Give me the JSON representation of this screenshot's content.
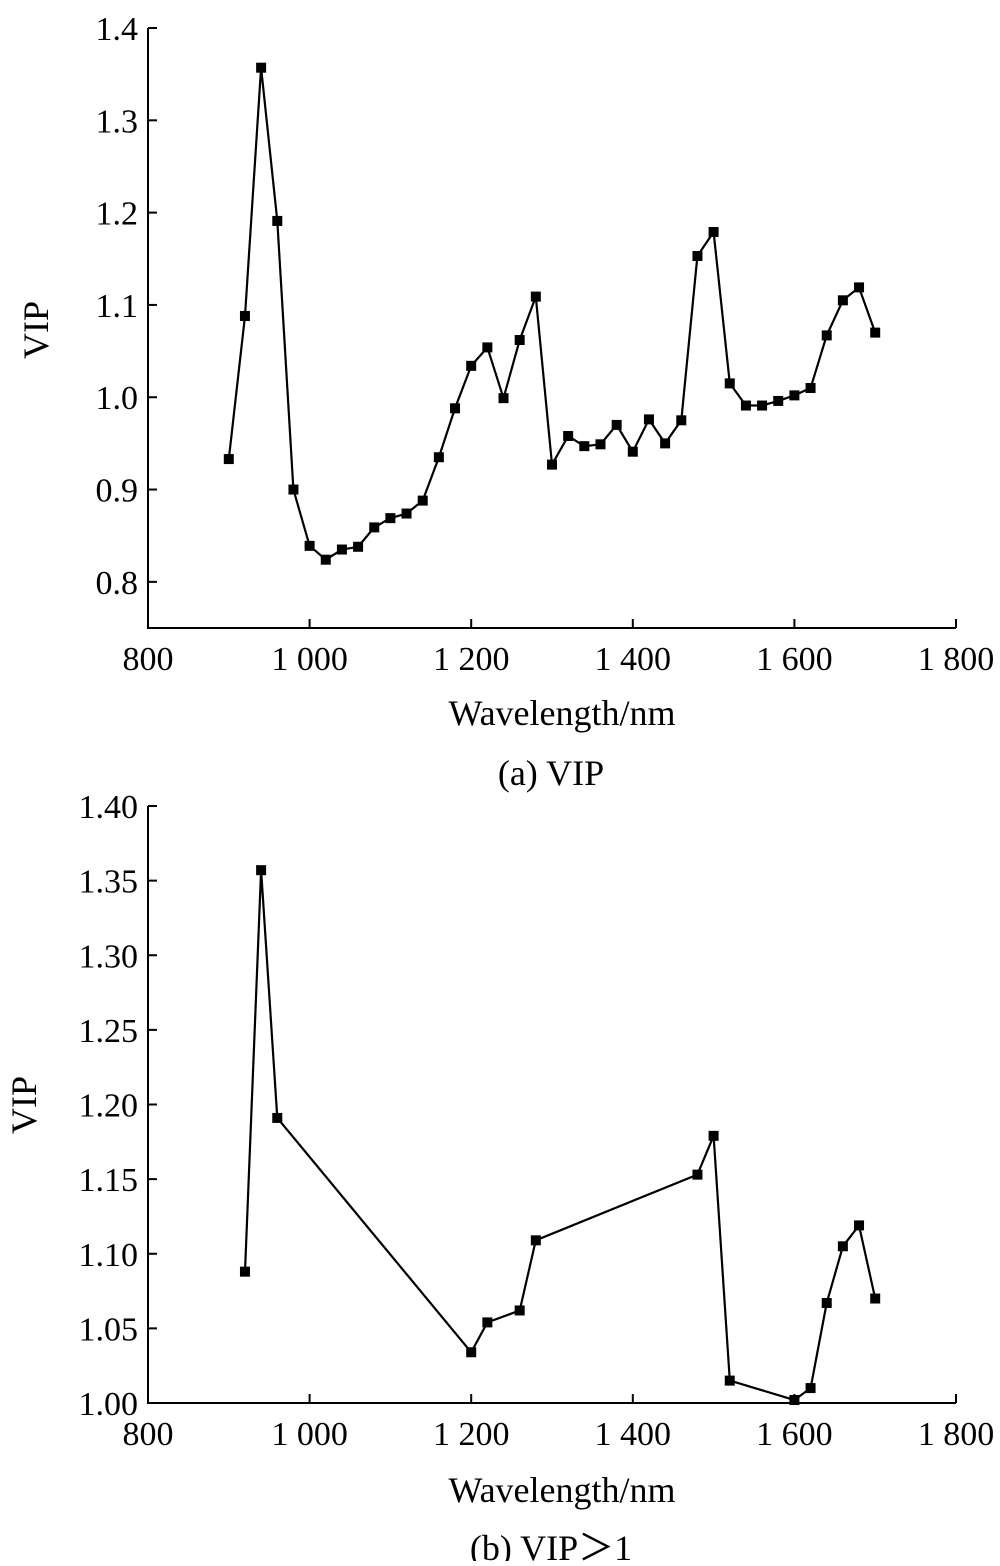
{
  "chart_data": [
    {
      "type": "line",
      "caption": "(a) VIP",
      "xlabel": "Wavelength/nm",
      "ylabel": "VIP",
      "xlim": [
        800,
        1800
      ],
      "ylim": [
        0.75,
        1.4
      ],
      "xticks": [
        800,
        1000,
        1200,
        1400,
        1600,
        1800
      ],
      "xtick_labels": [
        "800",
        "1 000",
        "1 200",
        "1 400",
        "1 600",
        "1 800"
      ],
      "yticks": [
        0.8,
        0.9,
        1.0,
        1.1,
        1.2,
        1.3,
        1.4
      ],
      "ytick_labels": [
        "0.8",
        "0.9",
        "1.0",
        "1.1",
        "1.2",
        "1.3",
        "1.4"
      ],
      "grid": false,
      "marker": "square",
      "x": [
        900,
        920,
        940,
        960,
        980,
        1000,
        1020,
        1040,
        1060,
        1080,
        1100,
        1120,
        1140,
        1160,
        1180,
        1200,
        1220,
        1240,
        1260,
        1280,
        1300,
        1320,
        1340,
        1360,
        1380,
        1400,
        1420,
        1440,
        1460,
        1480,
        1500,
        1520,
        1540,
        1560,
        1580,
        1600,
        1620,
        1640,
        1660,
        1680,
        1700
      ],
      "series": [
        {
          "values": [
            0.933,
            1.088,
            1.357,
            1.191,
            0.9,
            0.839,
            0.824,
            0.835,
            0.838,
            0.859,
            0.869,
            0.874,
            0.888,
            0.935,
            0.988,
            1.034,
            1.054,
            0.999,
            1.062,
            1.109,
            0.927,
            0.958,
            0.947,
            0.949,
            0.97,
            0.941,
            0.976,
            0.95,
            0.975,
            1.153,
            1.179,
            1.015,
            0.991,
            0.991,
            0.996,
            1.002,
            1.01,
            1.067,
            1.105,
            1.119,
            1.07
          ]
        }
      ]
    },
    {
      "type": "line",
      "caption": "(b) VIP＞1",
      "xlabel": "Wavelength/nm",
      "ylabel": "VIP",
      "xlim": [
        800,
        1800
      ],
      "ylim": [
        1.0,
        1.4
      ],
      "xticks": [
        800,
        1000,
        1200,
        1400,
        1600,
        1800
      ],
      "xtick_labels": [
        "800",
        "1 000",
        "1 200",
        "1 400",
        "1 600",
        "1 800"
      ],
      "yticks": [
        1.0,
        1.05,
        1.1,
        1.15,
        1.2,
        1.25,
        1.3,
        1.35,
        1.4
      ],
      "ytick_labels": [
        "1.00",
        "1.05",
        "1.10",
        "1.15",
        "1.20",
        "1.25",
        "1.30",
        "1.35",
        "1.40"
      ],
      "grid": false,
      "marker": "square",
      "x": [
        920,
        940,
        960,
        1200,
        1220,
        1260,
        1280,
        1480,
        1500,
        1520,
        1600,
        1620,
        1640,
        1660,
        1680,
        1700
      ],
      "series": [
        {
          "values": [
            1.088,
            1.357,
            1.191,
            1.034,
            1.054,
            1.062,
            1.109,
            1.153,
            1.179,
            1.015,
            1.002,
            1.01,
            1.067,
            1.105,
            1.119,
            1.07
          ]
        }
      ]
    }
  ]
}
